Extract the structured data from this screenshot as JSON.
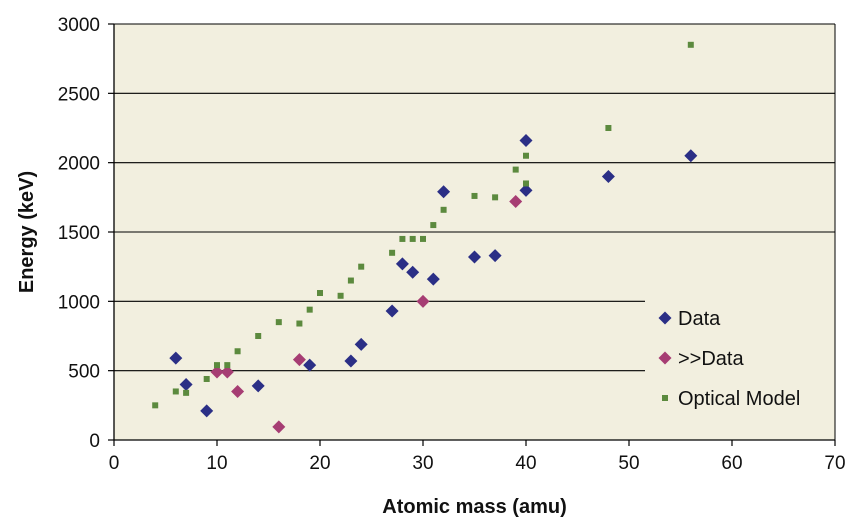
{
  "colors": {
    "plot_bg": "#f2efdf",
    "grid": "#000000",
    "axis": "#000000",
    "data": "#2b2f86",
    "over_data": "#a63d73",
    "optical_model": "#5c8a3e"
  },
  "chart_data": {
    "type": "scatter",
    "title": "",
    "xlabel": "Atomic mass (amu)",
    "ylabel": "Energy (keV)",
    "xlim": [
      0,
      70
    ],
    "ylim": [
      0,
      3000
    ],
    "xticks": [
      0,
      10,
      20,
      30,
      40,
      50,
      60,
      70
    ],
    "yticks": [
      0,
      500,
      1000,
      1500,
      2000,
      2500,
      3000
    ],
    "grid": "horizontal major gridlines",
    "legend_position": "bottom-right, inside plot",
    "series": [
      {
        "name": "Data",
        "marker": "diamond",
        "color": "#2b2f86",
        "points": [
          [
            6,
            590
          ],
          [
            7,
            400
          ],
          [
            9,
            210
          ],
          [
            14,
            390
          ],
          [
            19,
            540
          ],
          [
            23,
            570
          ],
          [
            24,
            690
          ],
          [
            27,
            930
          ],
          [
            28,
            1270
          ],
          [
            29,
            1210
          ],
          [
            31,
            1160
          ],
          [
            32,
            1790
          ],
          [
            35,
            1320
          ],
          [
            37,
            1330
          ],
          [
            40,
            1800
          ],
          [
            40,
            2160
          ],
          [
            48,
            1900
          ],
          [
            56,
            2050
          ]
        ]
      },
      {
        "name": ">>Data",
        "marker": "diamond",
        "color": "#a63d73",
        "points": [
          [
            10,
            490
          ],
          [
            11,
            490
          ],
          [
            12,
            350
          ],
          [
            16,
            95
          ],
          [
            18,
            580
          ],
          [
            30,
            1000
          ],
          [
            39,
            1720
          ]
        ]
      },
      {
        "name": "Optical Model",
        "marker": "square",
        "color": "#5c8a3e",
        "points": [
          [
            4,
            250
          ],
          [
            6,
            350
          ],
          [
            7,
            340
          ],
          [
            9,
            440
          ],
          [
            10,
            540
          ],
          [
            11,
            540
          ],
          [
            12,
            640
          ],
          [
            14,
            750
          ],
          [
            16,
            850
          ],
          [
            18,
            840
          ],
          [
            19,
            940
          ],
          [
            20,
            1060
          ],
          [
            22,
            1040
          ],
          [
            23,
            1150
          ],
          [
            24,
            1250
          ],
          [
            27,
            1350
          ],
          [
            28,
            1450
          ],
          [
            29,
            1450
          ],
          [
            30,
            1450
          ],
          [
            31,
            1550
          ],
          [
            32,
            1660
          ],
          [
            35,
            1760
          ],
          [
            37,
            1750
          ],
          [
            39,
            1950
          ],
          [
            40,
            1850
          ],
          [
            40,
            2050
          ],
          [
            48,
            2250
          ],
          [
            56,
            2850
          ]
        ]
      }
    ]
  }
}
